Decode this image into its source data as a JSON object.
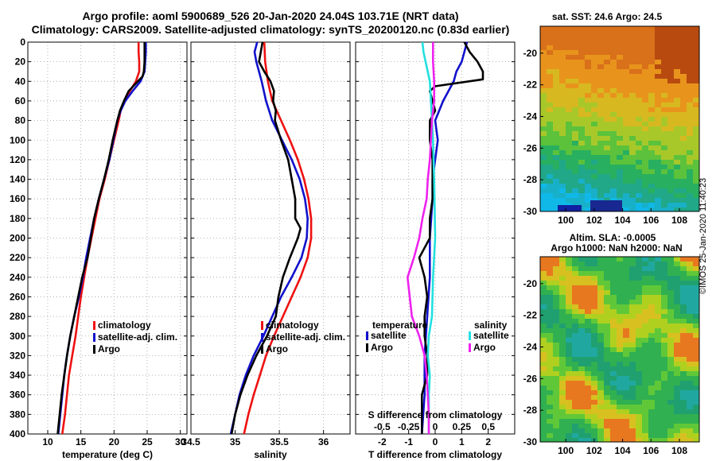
{
  "title_line1": "Argo profile: aoml 5900689_526 20-Jan-2020 24.04S 103.71E (NRT data)",
  "title_line2": "Climatology: CARS2009. Satellite-adjusted climatology: synTS_20200120.nc (0.83d earlier)",
  "footer_stamp": "©IMOS 25-Jan-2020 11:40:23",
  "colors": {
    "climatology": "#ee1111",
    "satellite_adj": "#1111cc",
    "argo": "#000000",
    "satellite": "#22e0e0",
    "argo_salinity": "#ee22ee"
  },
  "depth_ticks": [
    "0",
    "20",
    "40",
    "60",
    "80",
    "100",
    "120",
    "140",
    "160",
    "180",
    "200",
    "220",
    "240",
    "260",
    "280",
    "300",
    "320",
    "340",
    "360",
    "380",
    "400"
  ],
  "chart_data": [
    {
      "id": "temperature",
      "type": "line",
      "xlabel": "temperature (deg C)",
      "ylabel": "depth",
      "xlim": [
        7,
        31
      ],
      "ylim": [
        0,
        400
      ],
      "grid": true,
      "xticks": [
        10,
        15,
        20,
        25,
        30
      ],
      "xtick_labels": [
        "10",
        "15",
        "20",
        "25",
        "30"
      ],
      "legend": [
        "climatology",
        "satellite-adj. clim.",
        "Argo"
      ],
      "series": [
        {
          "name": "climatology",
          "color": "climatology",
          "depth": [
            0,
            10,
            20,
            30,
            40,
            50,
            60,
            70,
            80,
            100,
            120,
            140,
            160,
            180,
            200,
            220,
            240,
            260,
            280,
            300,
            320,
            340,
            360,
            380,
            400
          ],
          "values": [
            23.7,
            23.7,
            23.8,
            23.8,
            23.3,
            22.4,
            21.6,
            21.0,
            20.7,
            20.0,
            19.3,
            18.6,
            17.8,
            17.2,
            16.6,
            16.0,
            15.5,
            15.0,
            14.6,
            14.2,
            13.7,
            13.2,
            12.9,
            12.6,
            12.2
          ]
        },
        {
          "name": "satellite-adj. clim.",
          "color": "satellite_adj",
          "depth": [
            0,
            10,
            20,
            30,
            40,
            50,
            60,
            70,
            80,
            100,
            120,
            140,
            160,
            180,
            200,
            220,
            240,
            260,
            280,
            300,
            320,
            340,
            360,
            380,
            400
          ],
          "values": [
            24.8,
            24.8,
            24.7,
            24.6,
            24.0,
            22.8,
            21.7,
            21.0,
            20.5,
            19.9,
            19.3,
            18.5,
            17.7,
            17.0,
            16.4,
            15.8,
            15.3,
            14.7,
            14.0,
            13.4,
            12.9,
            12.5,
            12.2,
            11.9,
            11.6
          ]
        },
        {
          "name": "Argo",
          "color": "argo",
          "depth": [
            0,
            10,
            20,
            30,
            35,
            40,
            50,
            60,
            70,
            80,
            100,
            120,
            140,
            160,
            180,
            200,
            220,
            240,
            260,
            280,
            300,
            320,
            340,
            360,
            380,
            400
          ],
          "values": [
            24.6,
            24.6,
            24.6,
            24.5,
            24.3,
            23.6,
            22.2,
            21.5,
            20.9,
            20.5,
            19.8,
            19.2,
            18.5,
            17.7,
            17.0,
            16.5,
            16.0,
            15.2,
            14.6,
            14.0,
            13.4,
            12.9,
            12.5,
            12.1,
            11.8,
            11.5
          ]
        }
      ]
    },
    {
      "id": "salinity",
      "type": "line",
      "xlabel": "salinity",
      "ylabel": "depth",
      "xlim": [
        34.5,
        36.3
      ],
      "ylim": [
        0,
        400
      ],
      "grid": true,
      "xticks": [
        34.5,
        35,
        35.5,
        36
      ],
      "xtick_labels": [
        "34.5",
        "35",
        "35.5",
        "36"
      ],
      "legend": [
        "climatology",
        "satellite-adj. clim.",
        "Argo"
      ],
      "series": [
        {
          "name": "climatology",
          "color": "climatology",
          "depth": [
            0,
            20,
            40,
            60,
            80,
            100,
            120,
            140,
            160,
            180,
            200,
            220,
            240,
            260,
            280,
            300,
            320,
            340,
            360,
            380,
            400
          ],
          "values": [
            35.33,
            35.34,
            35.37,
            35.42,
            35.52,
            35.62,
            35.71,
            35.78,
            35.83,
            35.86,
            35.86,
            35.82,
            35.74,
            35.64,
            35.54,
            35.44,
            35.35,
            35.28,
            35.21,
            35.15,
            35.1
          ]
        },
        {
          "name": "satellite-adj. clim.",
          "color": "satellite_adj",
          "depth": [
            0,
            10,
            20,
            40,
            60,
            80,
            100,
            120,
            140,
            160,
            180,
            200,
            220,
            240,
            260,
            280,
            300,
            320,
            340,
            360,
            380,
            400
          ],
          "values": [
            35.25,
            35.22,
            35.24,
            35.3,
            35.35,
            35.42,
            35.53,
            35.64,
            35.73,
            35.79,
            35.82,
            35.81,
            35.75,
            35.64,
            35.52,
            35.42,
            35.32,
            35.21,
            35.12,
            35.05,
            35.0,
            34.95
          ]
        },
        {
          "name": "Argo",
          "color": "argo",
          "depth": [
            0,
            20,
            30,
            40,
            50,
            60,
            70,
            80,
            100,
            120,
            140,
            160,
            180,
            190,
            200,
            220,
            240,
            260,
            280,
            300,
            320,
            340,
            360,
            380,
            400
          ],
          "values": [
            35.31,
            35.27,
            35.33,
            35.4,
            35.44,
            35.43,
            35.46,
            35.45,
            35.52,
            35.6,
            35.64,
            35.68,
            35.68,
            35.74,
            35.71,
            35.62,
            35.54,
            35.49,
            35.46,
            35.36,
            35.24,
            35.14,
            35.06,
            35.0,
            34.96
          ]
        }
      ]
    },
    {
      "id": "difference",
      "type": "line",
      "xlabel": "T difference from climatology",
      "xlabel_top": "S difference from climatology",
      "xlim": [
        -3,
        3
      ],
      "ylim": [
        0,
        400
      ],
      "grid": true,
      "xticks": [
        -2,
        -1,
        0,
        1,
        2
      ],
      "xtick_labels": [
        "-2",
        "-1",
        "0",
        "1",
        "2"
      ],
      "xticks_top": [
        -0.5,
        -0.25,
        0,
        0.25,
        0.5
      ],
      "xtick_labels_top": [
        "-0.5",
        "-0.25",
        "0",
        "0.25",
        "0.5"
      ],
      "legend_temperature_title": "temperature",
      "legend_salinity_title": "salinity",
      "legend": [
        "satellite",
        "Argo",
        "satellite",
        "Argo"
      ],
      "series": [
        {
          "name": "T satellite",
          "color": "satellite_adj",
          "depth": [
            0,
            10,
            20,
            30,
            40,
            50,
            60,
            80,
            100,
            120,
            140,
            160,
            200,
            240,
            280,
            320,
            360,
            400
          ],
          "values": [
            1.2,
            1.1,
            1.0,
            0.8,
            0.7,
            0.5,
            0.3,
            0.0,
            0.1,
            0.0,
            -0.1,
            -0.1,
            -0.2,
            -0.2,
            -0.3,
            -0.4,
            -0.4,
            -0.5
          ]
        },
        {
          "name": "T Argo",
          "color": "argo",
          "depth": [
            0,
            10,
            20,
            30,
            38,
            45,
            50,
            60,
            70,
            80,
            100,
            120,
            140,
            160,
            180,
            200,
            220,
            240,
            260,
            280,
            300,
            320,
            340,
            360,
            380,
            400
          ],
          "values": [
            1.1,
            1.3,
            1.6,
            1.8,
            1.8,
            0.0,
            -0.2,
            -0.1,
            0.0,
            -0.2,
            -0.2,
            -0.1,
            -0.1,
            -0.1,
            -0.2,
            -0.2,
            -0.6,
            -0.4,
            -0.3,
            -0.4,
            -0.4,
            -0.3,
            -0.3,
            -0.5,
            -0.5,
            -0.5
          ]
        },
        {
          "name": "S satellite",
          "color": "satellite",
          "depth": [
            0,
            10,
            20,
            40,
            60,
            80,
            100,
            140,
            200,
            240,
            280,
            300,
            320,
            340,
            360,
            380,
            400
          ],
          "values": [
            -0.12,
            -0.11,
            -0.09,
            -0.05,
            -0.04,
            -0.03,
            -0.02,
            -0.01,
            0.0,
            -0.02,
            -0.03,
            -0.06,
            -0.07,
            -0.05,
            -0.06,
            -0.06,
            -0.06
          ]
        },
        {
          "name": "S Argo",
          "color": "argo_salinity",
          "depth": [
            0,
            20,
            40,
            60,
            80,
            100,
            120,
            140,
            160,
            180,
            200,
            220,
            240,
            260,
            280,
            300,
            320,
            340,
            360,
            380,
            400
          ],
          "values": [
            -0.02,
            -0.02,
            -0.01,
            -0.01,
            -0.03,
            -0.04,
            -0.05,
            -0.07,
            -0.08,
            -0.12,
            -0.15,
            -0.2,
            -0.26,
            -0.24,
            -0.22,
            -0.15,
            -0.1,
            -0.08,
            -0.07,
            -0.06,
            -0.06
          ]
        }
      ]
    },
    {
      "id": "sst_map",
      "type": "heatmap",
      "title": "sat. SST: 24.6 Argo: 24.5",
      "xlim": [
        98.2,
        109.4
      ],
      "ylim": [
        -30,
        -18.3
      ],
      "xticks": [
        100,
        102,
        104,
        106,
        108
      ],
      "xtick_labels": [
        "100",
        "102",
        "104",
        "106",
        "108"
      ],
      "yticks": [
        -20,
        -22,
        -24,
        -26,
        -28,
        -30
      ],
      "ytick_labels": [
        "-20",
        "-22",
        "-24",
        "-26",
        "-28",
        "-30"
      ]
    },
    {
      "id": "sla_map",
      "type": "heatmap",
      "title": "Altim. SLA: -0.0005",
      "subtitle": "Argo h1000: NaN h2000: NaN",
      "xlim": [
        98.2,
        109.4
      ],
      "ylim": [
        -30,
        -18.3
      ],
      "xticks": [
        100,
        102,
        104,
        106,
        108
      ],
      "xtick_labels": [
        "100",
        "102",
        "104",
        "106",
        "108"
      ],
      "yticks": [
        -20,
        -22,
        -24,
        -26,
        -28,
        -30
      ],
      "ytick_labels": [
        "-20",
        "-22",
        "-24",
        "-26",
        "-28",
        "-30"
      ]
    }
  ]
}
